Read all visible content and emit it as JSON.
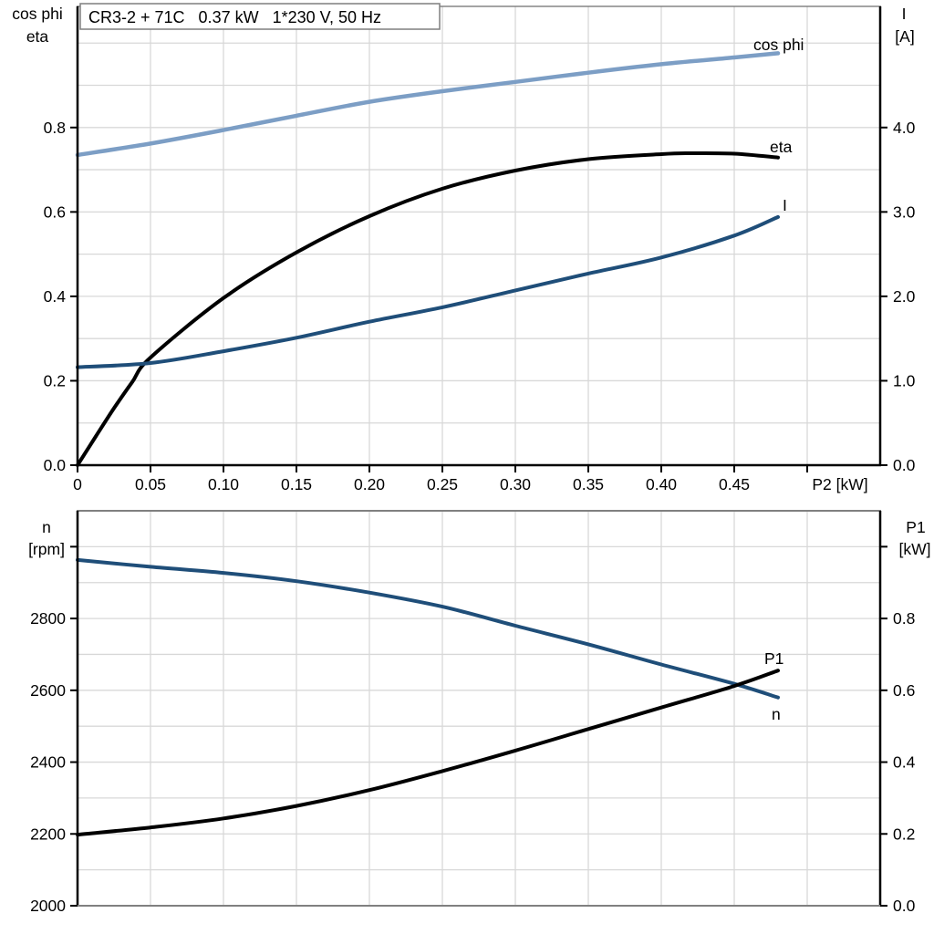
{
  "header": {
    "title": "CR3-2 + 71C   0.37 kW   1*230 V, 50 Hz"
  },
  "colors": {
    "cos_phi_blue": "#7C9EC5",
    "dark_blue": "#1F4E79",
    "black": "#000000",
    "grid": "#D8D8D8",
    "frame_gray": "#808080",
    "title_box_border": "#7F7F7F",
    "background": "#FFFFFF"
  },
  "chart_data": [
    {
      "type": "line",
      "title": "CR3-2 + 71C   0.37 kW   1*230 V, 50 Hz",
      "xlabel": "P2 [kW]",
      "xlim": [
        0,
        0.55
      ],
      "x_grid_step": 0.05,
      "x_ticks": [
        0,
        0.05,
        0.1,
        0.15,
        0.2,
        0.25,
        0.3,
        0.35,
        0.4,
        0.45
      ],
      "x_tick_labels": [
        "0",
        "0.05",
        "0.10",
        "0.15",
        "0.20",
        "0.25",
        "0.30",
        "0.35",
        "0.40",
        "0.45"
      ],
      "x_tick_marks": [
        0,
        0.05,
        0.1,
        0.15,
        0.2,
        0.25,
        0.3,
        0.35,
        0.4,
        0.45,
        0.5
      ],
      "left_axis": {
        "label_lines": [
          "cos phi",
          "eta"
        ],
        "lim": [
          0,
          1.087
        ],
        "grid_step": 0.1,
        "tick_values": [
          0,
          0.2,
          0.4,
          0.6,
          0.8
        ],
        "tick_labels": [
          "0.0",
          "0.2",
          "0.4",
          "0.6",
          "0.8"
        ],
        "unlabeled_ticks": []
      },
      "right_axis": {
        "label_lines": [
          "I",
          "[A]"
        ],
        "lim": [
          0,
          5.435
        ],
        "tick_values": [
          0,
          1,
          2,
          3,
          4
        ],
        "tick_labels": [
          "0.0",
          "1.0",
          "2.0",
          "3.0",
          "4.0"
        ],
        "unlabeled_ticks": []
      },
      "series": [
        {
          "name": "cos phi",
          "axis": "left",
          "color": "#7C9EC5",
          "width": 4.5,
          "x": [
            0,
            0.05,
            0.1,
            0.15,
            0.2,
            0.25,
            0.3,
            0.35,
            0.4,
            0.45,
            0.48
          ],
          "y": [
            0.735,
            0.762,
            0.794,
            0.828,
            0.861,
            0.886,
            0.908,
            0.93,
            0.95,
            0.966,
            0.976
          ]
        },
        {
          "name": "eta",
          "axis": "left",
          "color": "#000000",
          "width": 4,
          "x": [
            0,
            0.0125,
            0.025,
            0.0375,
            0.05,
            0.1,
            0.15,
            0.2,
            0.25,
            0.3,
            0.35,
            0.4,
            0.42,
            0.45,
            0.48
          ],
          "y": [
            0,
            0.068,
            0.135,
            0.197,
            0.255,
            0.396,
            0.504,
            0.59,
            0.655,
            0.698,
            0.725,
            0.737,
            0.739,
            0.738,
            0.729
          ]
        },
        {
          "name": "I",
          "axis": "right",
          "color": "#1F4E79",
          "width": 4,
          "x": [
            0,
            0.05,
            0.1,
            0.15,
            0.2,
            0.25,
            0.3,
            0.35,
            0.4,
            0.45,
            0.48
          ],
          "y": [
            1.16,
            1.21,
            1.35,
            1.51,
            1.7,
            1.87,
            2.07,
            2.27,
            2.46,
            2.72,
            2.94
          ]
        }
      ]
    },
    {
      "type": "line",
      "xlabel": "",
      "xlim": [
        0,
        0.55
      ],
      "x_grid_step": 0.05,
      "x_ticks": [],
      "x_tick_labels": [],
      "x_tick_marks": [],
      "left_axis": {
        "label_lines": [
          "n",
          "[rpm]"
        ],
        "lim": [
          2000,
          3100
        ],
        "grid_step": 100,
        "tick_values": [
          2000,
          2200,
          2400,
          2600,
          2800
        ],
        "tick_labels": [
          "2000",
          "2200",
          "2400",
          "2600",
          "2800"
        ],
        "unlabeled_ticks": [
          3000
        ]
      },
      "right_axis": {
        "label_lines": [
          "P1",
          "[kW]"
        ],
        "lim": [
          0,
          1.1
        ],
        "tick_values": [
          0,
          0.2,
          0.4,
          0.6,
          0.8
        ],
        "tick_labels": [
          "0.0",
          "0.2",
          "0.4",
          "0.6",
          "0.8"
        ],
        "unlabeled_ticks": [
          1.0
        ]
      },
      "series": [
        {
          "name": "n",
          "axis": "left",
          "color": "#1F4E79",
          "width": 4,
          "x": [
            0,
            0.05,
            0.1,
            0.15,
            0.2,
            0.25,
            0.3,
            0.35,
            0.4,
            0.45,
            0.48
          ],
          "y": [
            2963,
            2944,
            2927,
            2904,
            2872,
            2833,
            2780,
            2728,
            2672,
            2618,
            2580
          ]
        },
        {
          "name": "P1",
          "axis": "right",
          "color": "#000000",
          "width": 4,
          "x": [
            0,
            0.05,
            0.1,
            0.15,
            0.2,
            0.25,
            0.3,
            0.35,
            0.4,
            0.45,
            0.48
          ],
          "y": [
            0.198,
            0.218,
            0.243,
            0.278,
            0.322,
            0.375,
            0.432,
            0.492,
            0.552,
            0.612,
            0.655
          ]
        }
      ]
    }
  ]
}
